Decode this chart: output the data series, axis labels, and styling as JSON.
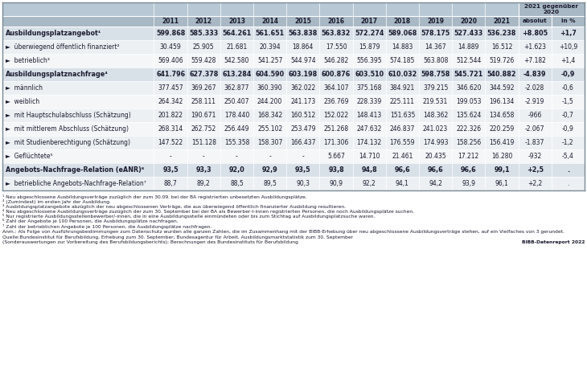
{
  "years": [
    "2011",
    "2012",
    "2013",
    "2014",
    "2015",
    "2016",
    "2017",
    "2018",
    "2019",
    "2020",
    "2021"
  ],
  "header_group": "2021 gegenüber\n2020",
  "header_sub": [
    "absolut",
    "in %"
  ],
  "rows": [
    {
      "label": "Ausbildungsplatzangebot¹",
      "bold": true,
      "values": [
        "599.868",
        "585.333",
        "564.261",
        "561.651",
        "563.838",
        "563.832",
        "572.274",
        "589.068",
        "578.175",
        "527.433",
        "536.238",
        "+8.805",
        "+1,7"
      ]
    },
    {
      "label": "►  überwiegend öffentlich finanziert²",
      "bold": false,
      "values": [
        "30.459",
        "25.905",
        "21.681",
        "20.394",
        "18.864",
        "17.550",
        "15.879",
        "14.883",
        "14.367",
        "14.889",
        "16.512",
        "+1.623",
        "+10,9"
      ]
    },
    {
      "label": "►  betrieblich³",
      "bold": false,
      "values": [
        "569.406",
        "559.428",
        "542.580",
        "541.257",
        "544.974",
        "546.282",
        "556.395",
        "574.185",
        "563.808",
        "512.544",
        "519.726",
        "+7.182",
        "+1,4"
      ]
    },
    {
      "label": "Ausbildungsplatznachfrage⁴",
      "bold": true,
      "values": [
        "641.796",
        "627.378",
        "613.284",
        "604.590",
        "603.198",
        "600.876",
        "603.510",
        "610.032",
        "598.758",
        "545.721",
        "540.882",
        "-4.839",
        "-0,9"
      ]
    },
    {
      "label": "►  männlich",
      "bold": false,
      "values": [
        "377.457",
        "369.267",
        "362.877",
        "360.390",
        "362.022",
        "364.107",
        "375.168",
        "384.921",
        "379.215",
        "346.620",
        "344.592",
        "-2.028",
        "-0,6"
      ]
    },
    {
      "label": "►  weiblich",
      "bold": false,
      "values": [
        "264.342",
        "258.111",
        "250.407",
        "244.200",
        "241.173",
        "236.769",
        "228.339",
        "225.111",
        "219.531",
        "199.053",
        "196.134",
        "-2.919",
        "-1,5"
      ]
    },
    {
      "label": "►  mit Hauptschulabschluss (Schätzung)",
      "bold": false,
      "values": [
        "201.822",
        "190.671",
        "178.440",
        "168.342",
        "160.512",
        "152.022",
        "148.413",
        "151.635",
        "148.362",
        "135.624",
        "134.658",
        "-966",
        "-0,7"
      ]
    },
    {
      "label": "►  mit mittlerem Abschluss (Schätzung)",
      "bold": false,
      "values": [
        "268.314",
        "262.752",
        "256.449",
        "255.102",
        "253.479",
        "251.268",
        "247.632",
        "246.837",
        "241.023",
        "222.326",
        "220.259",
        "-2.067",
        "-0,9"
      ]
    },
    {
      "label": "►  mit Studienberechtigung (Schätzung)",
      "bold": false,
      "values": [
        "147.522",
        "151.128",
        "155.358",
        "158.307",
        "166.437",
        "171.306",
        "174.132",
        "176.559",
        "174.993",
        "158.256",
        "156.419",
        "-1.837",
        "-1,2"
      ]
    },
    {
      "label": "►  Geflüchtete⁵",
      "bold": false,
      "values": [
        "-",
        "-",
        "-",
        "-",
        "-",
        "5.667",
        "14.710",
        "21.461",
        "20.435",
        "17.212",
        "16.280",
        "-932",
        "-5,4"
      ]
    },
    {
      "label": "Angebots-Nachfrage-Relation (eANR)⁶",
      "bold": true,
      "values": [
        "93,5",
        "93,3",
        "92,0",
        "92,9",
        "93,5",
        "93,8",
        "94,8",
        "96,6",
        "96,6",
        "96,6",
        "99,1",
        "+2,5",
        "."
      ]
    },
    {
      "label": "►  betriebliche Angebots-Nachfrage-Relation⁷",
      "bold": false,
      "values": [
        "88,7",
        "89,2",
        "88,5",
        "89,5",
        "90,3",
        "90,9",
        "92,2",
        "94,1",
        "94,2",
        "93,9",
        "96,1",
        "+2,2",
        "."
      ]
    }
  ],
  "footnotes": [
    "¹ Neu abgeschlossene Ausbildungsverträge zuzüglich der zum 30.09. bei der BA registrierten unbesetzten Ausbildungsplätze.",
    "² (Zumindest) im ersten Jahr der Ausbildung.",
    "³ Ausbildungsplatzangebote abzüglich der neu abgeschlossenen Verträge, die aus überwiegend öffentlich finanzierter Ausbildung resultieren.",
    "⁴ Neu abgeschlossene Ausbildungsverträge zuzüglich der zum 30. September bei der BA als Bewerber­l-innen registrierten Personen, die noch Ausbildungsplätze suchen.",
    "⁵ Nur registrierte Ausbildungsstellenbewerber/-innen, die in eine Ausbildungsstelle einmündeten oder bis zum Stichtag auf Ausbildungsplatzsuche waren.",
    "⁶ Zahl der Angebote je 100 Personen, die Ausbildungsplätze nachfragen.",
    "⁷ Zahl der betrieblichen Angebote je 100 Personen, die Ausbildungsplätze nachfragen."
  ],
  "anmerkung": "Anm.: Als Folge von Ausführungsbestimmungen zum Datenschutz wurden alle ganzen Zahlen, die im Zusammenhang mit der BIBB-Erhebung über neu abgeschlossene Ausbildungsverträge stehen, auf ein Vielfaches von 3 gerundet.",
  "quelle1": "Quelle:Bundesinstitut für Berufsbildung, Erhebung zum 30. September; Bundesagentur für Arbeit, Ausbildungsmarktstatistik zum 30. September",
  "quelle2": "(Sonderauswertungen zur Vorbereitung des Berufsbildungsberichts); Berechnungen des Bundesinstituts für Berufsbildung",
  "bibb": "BIBB-Datenreport 2022",
  "color_header": "#a8b8c4",
  "color_header2": "#b8c8d4",
  "color_bold_row": "#d8e0e8",
  "color_normal_row1": "#edf0f3",
  "color_normal_row2": "#f4f6f8",
  "color_border": "#ffffff",
  "color_text": "#1a1a2e"
}
